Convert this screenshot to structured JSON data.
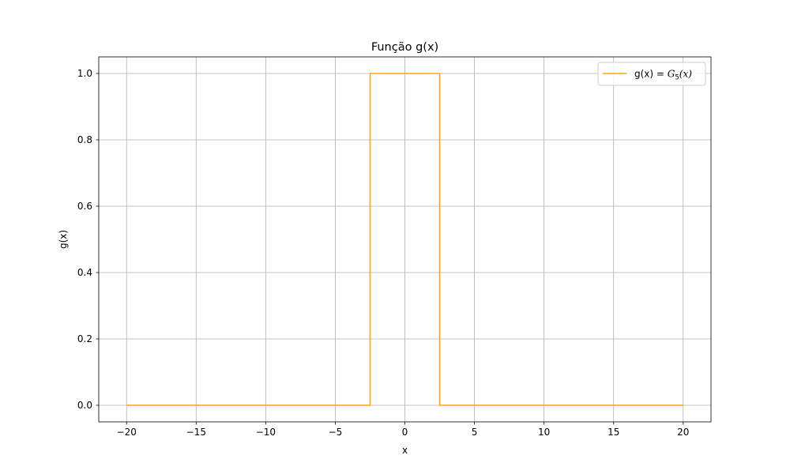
{
  "chart_data": {
    "type": "line",
    "title": "Função g(x)",
    "xlabel": "x",
    "ylabel": "g(x)",
    "xlim": [
      -22,
      22
    ],
    "ylim": [
      -0.05,
      1.05
    ],
    "xticks": [
      -20,
      -15,
      -10,
      -5,
      0,
      5,
      10,
      15,
      20
    ],
    "xtick_labels": [
      "−20",
      "−15",
      "−10",
      "−5",
      "0",
      "5",
      "10",
      "15",
      "20"
    ],
    "yticks": [
      0.0,
      0.2,
      0.4,
      0.6,
      0.8,
      1.0
    ],
    "ytick_labels": [
      "0.0",
      "0.2",
      "0.4",
      "0.6",
      "0.8",
      "1.0"
    ],
    "grid": true,
    "legend_position": "top-right",
    "series": [
      {
        "name": "g(x) = G5(x)",
        "legend_prefix": "g(x) = ",
        "legend_math_base": "G",
        "legend_math_sub": "5",
        "legend_math_arg": "(x)",
        "color": "#ffa500",
        "x": [
          -20,
          -2.5,
          -2.5,
          2.5,
          2.5,
          20
        ],
        "y": [
          0,
          0,
          1,
          1,
          0,
          0
        ]
      }
    ]
  }
}
